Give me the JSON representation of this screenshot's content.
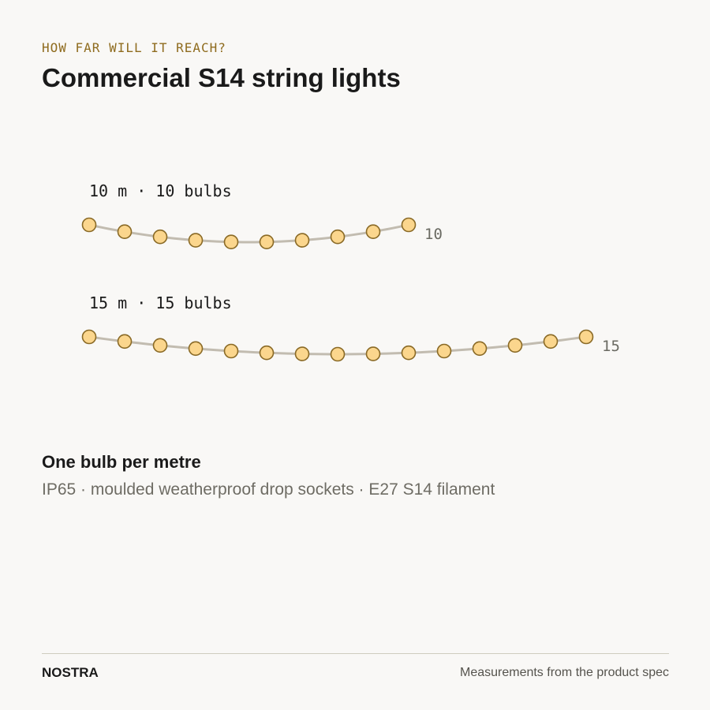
{
  "header": {
    "eyebrow": "HOW FAR WILL IT REACH?",
    "title": "Commercial S14 string lights"
  },
  "strings": [
    {
      "label": "10 m · 10 bulbs",
      "length_m": 10,
      "bulbs": 10,
      "count_label": "10"
    },
    {
      "label": "15 m · 15 bulbs",
      "length_m": 15,
      "bulbs": 15,
      "count_label": "15"
    }
  ],
  "colors": {
    "bulb_fill": "#fbd68d",
    "bulb_stroke": "#8a6a26",
    "wire": "#c2bcb0",
    "accent": "#8f6c1f"
  },
  "summary": {
    "tagline": "One bulb per metre",
    "specs": "IP65 · moulded weatherproof drop sockets · E27 S14 filament"
  },
  "footer": {
    "brand": "NOSTRA",
    "source": "Measurements from the product spec"
  }
}
